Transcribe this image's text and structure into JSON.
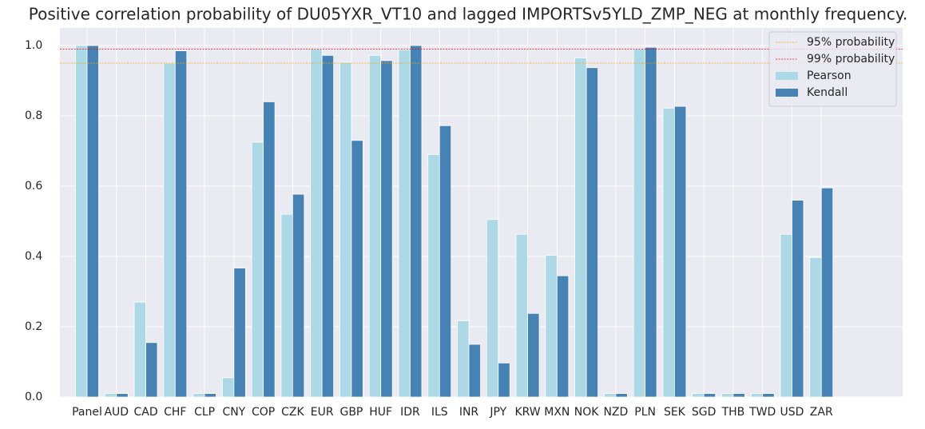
{
  "chart_data": {
    "type": "bar",
    "title": "Positive correlation probability of DU05YXR_VT10 and lagged IMPORTSv5YLD_ZMP_NEG at monthly frequency.",
    "categories": [
      "Panel",
      "AUD",
      "CAD",
      "CHF",
      "CLP",
      "CNY",
      "COP",
      "CZK",
      "EUR",
      "GBP",
      "HUF",
      "IDR",
      "ILS",
      "INR",
      "JPY",
      "KRW",
      "MXN",
      "NOK",
      "NZD",
      "PLN",
      "SEK",
      "SGD",
      "THB",
      "TWD",
      "USD",
      "ZAR"
    ],
    "series": [
      {
        "name": "Pearson",
        "color": "#add8e6",
        "values": [
          1.0,
          0.01,
          0.27,
          0.95,
          0.01,
          0.055,
          0.725,
          0.52,
          0.99,
          0.952,
          0.972,
          0.988,
          0.69,
          0.217,
          0.505,
          0.463,
          0.403,
          0.965,
          0.01,
          0.99,
          0.822,
          0.01,
          0.01,
          0.01,
          0.463,
          0.397
        ]
      },
      {
        "name": "Kendall",
        "color": "#4682b4",
        "values": [
          1.0,
          0.01,
          0.155,
          0.985,
          0.01,
          0.367,
          0.84,
          0.577,
          0.972,
          0.73,
          0.957,
          1.0,
          0.772,
          0.15,
          0.097,
          0.238,
          0.345,
          0.937,
          0.01,
          0.995,
          0.827,
          0.01,
          0.01,
          0.01,
          0.56,
          0.595
        ]
      }
    ],
    "reference_lines": [
      {
        "name": "95% probability",
        "value": 0.95,
        "color": "#ffa500"
      },
      {
        "name": "99% probability",
        "value": 0.99,
        "color": "#ff0000"
      }
    ],
    "ylim": [
      0,
      1.05
    ],
    "yticks": [
      0.0,
      0.2,
      0.4,
      0.6,
      0.8,
      1.0
    ],
    "ytick_labels": [
      "0.0",
      "0.2",
      "0.4",
      "0.6",
      "0.8",
      "1.0"
    ],
    "grid": true,
    "legend": "upper right"
  }
}
